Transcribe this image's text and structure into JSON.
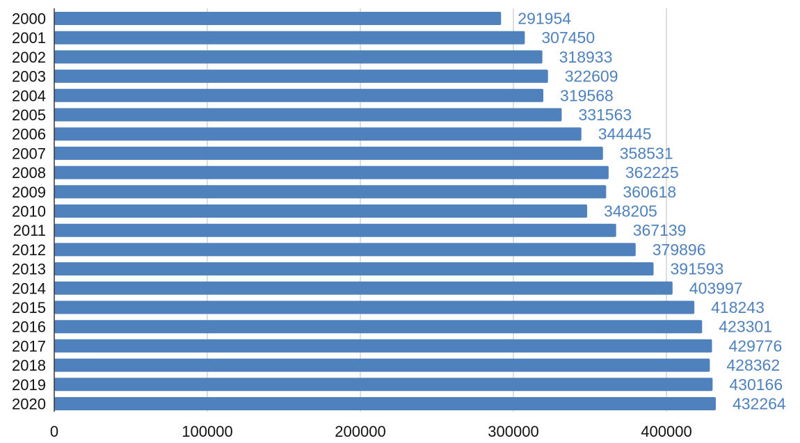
{
  "chart_data": {
    "type": "bar",
    "orientation": "horizontal",
    "categories": [
      "2000",
      "2001",
      "2002",
      "2003",
      "2004",
      "2005",
      "2006",
      "2007",
      "2008",
      "2009",
      "2010",
      "2011",
      "2012",
      "2013",
      "2014",
      "2015",
      "2016",
      "2017",
      "2018",
      "2019",
      "2020"
    ],
    "values": [
      291954,
      307450,
      318933,
      322609,
      319568,
      331563,
      344445,
      358531,
      362225,
      360618,
      348205,
      367139,
      379896,
      391593,
      403997,
      418243,
      423301,
      429776,
      428362,
      430166,
      432264
    ],
    "title": "",
    "xlabel": "",
    "ylabel": "",
    "xlim": [
      0,
      490000
    ],
    "xticks": [
      0,
      100000,
      200000,
      300000,
      400000
    ],
    "grid": true,
    "legend": "none",
    "bar_color": "#4f81bd",
    "label_color": "#4f81bd",
    "data_labels": true
  }
}
